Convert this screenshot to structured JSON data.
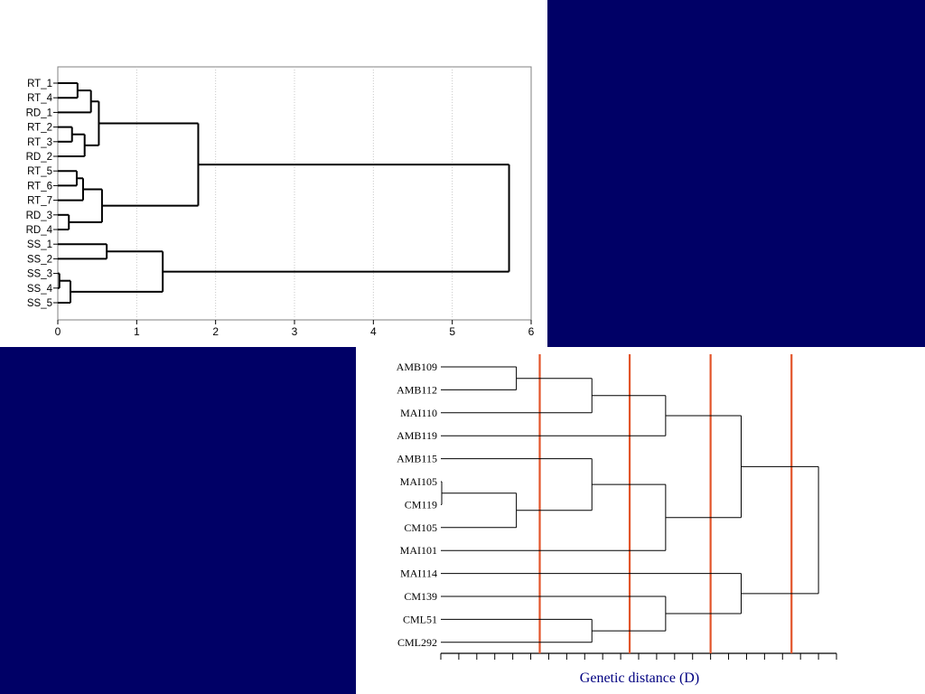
{
  "colors": {
    "background": "#000066",
    "panel": "#ffffff",
    "tree_line": "#000000",
    "grid": "#c8c8c8",
    "cut_line": "#e2542a",
    "xlabel_color": "#000080"
  },
  "chart_data": [
    {
      "type": "dendrogram",
      "title": "",
      "xlabel": "",
      "ylabel": "",
      "xlim": [
        0,
        6
      ],
      "ticks": [
        "0",
        "1",
        "2",
        "3",
        "4",
        "5",
        "6"
      ],
      "grid": true,
      "leaves": [
        "RT_1",
        "RT_4",
        "RD_1",
        "RT_2",
        "RT_3",
        "RD_2",
        "RT_5",
        "RT_6",
        "RT_7",
        "RD_3",
        "RD_4",
        "SS_1",
        "SS_2",
        "SS_3",
        "SS_4",
        "SS_5"
      ],
      "merges": [
        {
          "a": "L0",
          "b": "L1",
          "height": 0.25
        },
        {
          "a": "M0",
          "b": "L2",
          "height": 0.42
        },
        {
          "a": "L3",
          "b": "L4",
          "height": 0.18
        },
        {
          "a": "M2",
          "b": "L5",
          "height": 0.34
        },
        {
          "a": "M1",
          "b": "M3",
          "height": 0.52
        },
        {
          "a": "L6",
          "b": "L7",
          "height": 0.24
        },
        {
          "a": "M5",
          "b": "L8",
          "height": 0.32
        },
        {
          "a": "L9",
          "b": "L10",
          "height": 0.14
        },
        {
          "a": "M6",
          "b": "M7",
          "height": 0.56
        },
        {
          "a": "M4",
          "b": "M8",
          "height": 1.78
        },
        {
          "a": "L11",
          "b": "L12",
          "height": 0.62
        },
        {
          "a": "L13",
          "b": "L14",
          "height": 0.02
        },
        {
          "a": "M11",
          "b": "L15",
          "height": 0.16
        },
        {
          "a": "M10",
          "b": "M12",
          "height": 1.33
        },
        {
          "a": "M9",
          "b": "M13",
          "height": 5.72
        }
      ]
    },
    {
      "type": "dendrogram",
      "title": "",
      "xlabel": "Genetic distance (D)",
      "ylabel": "",
      "xlim": [
        0,
        22
      ],
      "tick_count": 23,
      "cut_lines": [
        5.5,
        10.5,
        15,
        19.5
      ],
      "leaves": [
        "AMB109",
        "AMB112",
        "MAI110",
        "AMB119",
        "AMB115",
        "MAI105",
        "CM119",
        "CM105",
        "MAI101",
        "MAI114",
        "CM139",
        "CML51",
        "CML292"
      ],
      "merges": [
        {
          "a": "L0",
          "b": "L1",
          "height": 4.2
        },
        {
          "a": "M0",
          "b": "L2",
          "height": 8.4
        },
        {
          "a": "M1",
          "b": "L3",
          "height": 12.5
        },
        {
          "a": "L5",
          "b": "L6",
          "height": 0.05
        },
        {
          "a": "M3",
          "b": "L7",
          "height": 4.2
        },
        {
          "a": "L4",
          "b": "M4",
          "height": 8.4
        },
        {
          "a": "M5",
          "b": "L8",
          "height": 12.5
        },
        {
          "a": "M2",
          "b": "M6",
          "height": 16.7
        },
        {
          "a": "L11",
          "b": "L12",
          "height": 8.4
        },
        {
          "a": "L10",
          "b": "M8",
          "height": 12.5
        },
        {
          "a": "L9",
          "b": "M9",
          "height": 16.7
        },
        {
          "a": "M7",
          "b": "M10",
          "height": 21
        }
      ]
    }
  ]
}
